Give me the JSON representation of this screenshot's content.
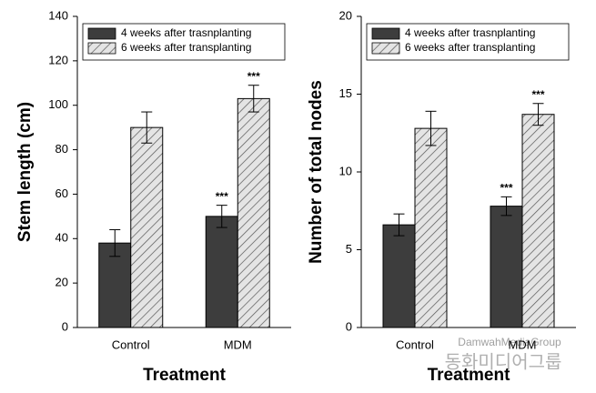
{
  "chart_data": [
    {
      "type": "bar",
      "xlabel": "Treatment",
      "ylabel": "Stem length (cm)",
      "categories": [
        "Control",
        "MDM"
      ],
      "series": [
        {
          "name": "4 weeks after trasnplanting",
          "color": "#3d3d3d",
          "values": [
            38,
            50
          ],
          "errors": [
            6,
            5
          ],
          "significance": [
            null,
            "***"
          ]
        },
        {
          "name": "6 weeks after transplanting",
          "color": "#d0d0d0",
          "hatch": true,
          "values": [
            90,
            103
          ],
          "errors": [
            7,
            6
          ],
          "significance": [
            null,
            "***"
          ]
        }
      ],
      "ylim": [
        0,
        140
      ],
      "yticks": [
        0,
        20,
        40,
        60,
        80,
        100,
        120,
        140
      ],
      "legend": "upper left"
    },
    {
      "type": "bar",
      "xlabel": "Treatment",
      "ylabel": "Number of total nodes",
      "categories": [
        "Control",
        "MDM"
      ],
      "series": [
        {
          "name": "4 weeks after trasnplanting",
          "color": "#3d3d3d",
          "values": [
            6.6,
            7.8
          ],
          "errors": [
            0.7,
            0.6
          ],
          "significance": [
            null,
            "***"
          ]
        },
        {
          "name": "6 weeks after transplanting",
          "color": "#d0d0d0",
          "hatch": true,
          "values": [
            12.8,
            13.7
          ],
          "errors": [
            1.1,
            0.7
          ],
          "significance": [
            null,
            "***"
          ]
        }
      ],
      "ylim": [
        0,
        20
      ],
      "yticks": [
        0,
        5,
        10,
        15,
        20
      ],
      "legend": "upper left"
    }
  ],
  "watermark": {
    "latin": "DamwahMediaGroup",
    "korean": "동화미디어그룹"
  }
}
